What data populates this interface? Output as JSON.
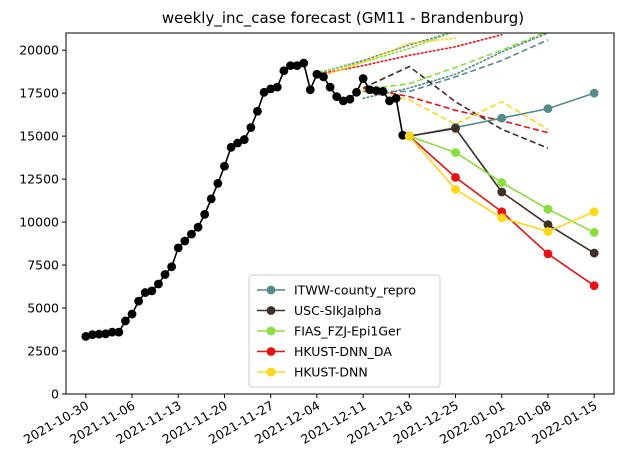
{
  "chart_data": {
    "type": "line",
    "title": "weekly_inc_case forecast (GM11 - Brandenburg)",
    "xlabel": "",
    "ylabel": "",
    "ylim": [
      0,
      21000
    ],
    "yticks": [
      0,
      2500,
      5000,
      7500,
      10000,
      12500,
      15000,
      17500,
      20000
    ],
    "xlim": [
      "2021-10-27",
      "2022-01-18"
    ],
    "xticks": [
      "2021-10-30",
      "2021-11-06",
      "2021-11-13",
      "2021-11-20",
      "2021-11-27",
      "2021-12-04",
      "2021-12-11",
      "2021-12-18",
      "2021-12-25",
      "2022-01-01",
      "2022-01-08",
      "2022-01-15"
    ],
    "grid": false,
    "legend_position": "bottom-center",
    "truth": {
      "color": "#000000",
      "points": [
        [
          "2021-10-30",
          3350
        ],
        [
          "2021-10-31",
          3450
        ],
        [
          "2021-11-01",
          3480
        ],
        [
          "2021-11-02",
          3500
        ],
        [
          "2021-11-03",
          3600
        ],
        [
          "2021-11-04",
          3600
        ],
        [
          "2021-11-05",
          4250
        ],
        [
          "2021-11-06",
          4650
        ],
        [
          "2021-11-07",
          5400
        ],
        [
          "2021-11-08",
          5900
        ],
        [
          "2021-11-09",
          6000
        ],
        [
          "2021-11-10",
          6400
        ],
        [
          "2021-11-11",
          6950
        ],
        [
          "2021-11-12",
          7400
        ],
        [
          "2021-11-13",
          8500
        ],
        [
          "2021-11-14",
          8900
        ],
        [
          "2021-11-15",
          9300
        ],
        [
          "2021-11-16",
          9700
        ],
        [
          "2021-11-17",
          10450
        ],
        [
          "2021-11-18",
          11350
        ],
        [
          "2021-11-19",
          12250
        ],
        [
          "2021-11-20",
          13250
        ],
        [
          "2021-11-21",
          14350
        ],
        [
          "2021-11-22",
          14600
        ],
        [
          "2021-11-23",
          14800
        ],
        [
          "2021-11-24",
          15500
        ],
        [
          "2021-11-25",
          16450
        ],
        [
          "2021-11-26",
          17550
        ],
        [
          "2021-11-27",
          17750
        ],
        [
          "2021-11-28",
          17850
        ],
        [
          "2021-11-29",
          18800
        ],
        [
          "2021-11-30",
          19100
        ],
        [
          "2021-12-01",
          19100
        ],
        [
          "2021-12-02",
          19250
        ],
        [
          "2021-12-03",
          17700
        ],
        [
          "2021-12-04",
          18600
        ],
        [
          "2021-12-05",
          18450
        ],
        [
          "2021-12-06",
          17850
        ],
        [
          "2021-12-07",
          17300
        ],
        [
          "2021-12-08",
          17050
        ],
        [
          "2021-12-09",
          17150
        ],
        [
          "2021-12-10",
          17550
        ],
        [
          "2021-12-11",
          18350
        ],
        [
          "2021-12-12",
          17700
        ],
        [
          "2021-12-13",
          17650
        ],
        [
          "2021-12-14",
          17600
        ],
        [
          "2021-12-15",
          17050
        ],
        [
          "2021-12-16",
          17200
        ],
        [
          "2021-12-17",
          15050
        ]
      ]
    },
    "series": [
      {
        "name": "ITWW-county_repro",
        "color": "#548b8b",
        "points": [
          [
            "2021-12-18",
            15000
          ],
          [
            "2021-12-25",
            15500
          ],
          [
            "2022-01-01",
            16050
          ],
          [
            "2022-01-08",
            16600
          ],
          [
            "2022-01-15",
            17500
          ]
        ]
      },
      {
        "name": "USC-SIkJalpha",
        "color": "#3d3026",
        "points": [
          [
            "2021-12-18",
            15000
          ],
          [
            "2021-12-25",
            15450
          ],
          [
            "2022-01-01",
            11750
          ],
          [
            "2022-01-08",
            9850
          ],
          [
            "2022-01-15",
            8200
          ]
        ]
      },
      {
        "name": "FIAS_FZJ-Epi1Ger",
        "color": "#88e03a",
        "points": [
          [
            "2021-12-18",
            15000
          ],
          [
            "2021-12-25",
            14050
          ],
          [
            "2022-01-01",
            12300
          ],
          [
            "2022-01-08",
            10750
          ],
          [
            "2022-01-15",
            9400
          ]
        ]
      },
      {
        "name": "HKUST-DNN_DA",
        "color": "#ee1010",
        "points": [
          [
            "2021-12-18",
            15000
          ],
          [
            "2021-12-25",
            12600
          ],
          [
            "2022-01-01",
            10600
          ],
          [
            "2022-01-08",
            8150
          ],
          [
            "2022-01-15",
            6300
          ]
        ]
      },
      {
        "name": "HKUST-DNN",
        "color": "#ffd712",
        "points": [
          [
            "2021-12-18",
            15000
          ],
          [
            "2021-12-25",
            11900
          ],
          [
            "2022-01-01",
            10250
          ],
          [
            "2022-01-08",
            9450
          ],
          [
            "2022-01-15",
            10600
          ]
        ]
      }
    ],
    "forecast_traces": [
      {
        "color": "#548b8b",
        "style": "dashed",
        "points": [
          [
            "2021-12-11",
            17600
          ],
          [
            "2021-12-18",
            17600
          ],
          [
            "2021-12-25",
            18450
          ],
          [
            "2022-01-01",
            19400
          ],
          [
            "2022-01-08",
            20600
          ]
        ]
      },
      {
        "color": "#548b8b",
        "style": "dotted",
        "points": [
          [
            "2021-12-11",
            17200
          ],
          [
            "2021-12-18",
            17800
          ],
          [
            "2021-12-25",
            18600
          ],
          [
            "2022-01-01",
            19900
          ],
          [
            "2022-01-08",
            21000
          ]
        ]
      },
      {
        "color": "#548b8b",
        "style": "dotted",
        "points": [
          [
            "2021-12-04",
            18650
          ],
          [
            "2021-12-11",
            19400
          ],
          [
            "2021-12-18",
            20300
          ],
          [
            "2021-12-25",
            21100
          ]
        ]
      },
      {
        "color": "#3d3026",
        "style": "dashed",
        "points": [
          [
            "2021-12-11",
            17800
          ],
          [
            "2021-12-18",
            19050
          ],
          [
            "2021-12-25",
            17000
          ],
          [
            "2022-01-01",
            15400
          ],
          [
            "2022-01-08",
            14300
          ]
        ]
      },
      {
        "color": "#88e03a",
        "style": "dashed",
        "points": [
          [
            "2021-12-11",
            17700
          ],
          [
            "2021-12-18",
            18050
          ],
          [
            "2021-12-25",
            19000
          ],
          [
            "2022-01-01",
            20000
          ],
          [
            "2022-01-08",
            21100
          ]
        ]
      },
      {
        "color": "#88e03a",
        "style": "dotted",
        "points": [
          [
            "2021-12-04",
            18700
          ],
          [
            "2021-12-11",
            19300
          ],
          [
            "2021-12-18",
            20100
          ],
          [
            "2021-12-25",
            21100
          ]
        ]
      },
      {
        "color": "#ee1010",
        "style": "dashed",
        "points": [
          [
            "2021-12-11",
            17800
          ],
          [
            "2021-12-18",
            17300
          ],
          [
            "2021-12-25",
            16500
          ],
          [
            "2022-01-01",
            15900
          ],
          [
            "2022-01-08",
            15200
          ]
        ]
      },
      {
        "color": "#ee1010",
        "style": "dotted",
        "points": [
          [
            "2021-12-04",
            18600
          ],
          [
            "2021-12-11",
            19100
          ],
          [
            "2021-12-18",
            19700
          ],
          [
            "2021-12-25",
            20200
          ],
          [
            "2022-01-01",
            20900
          ]
        ]
      },
      {
        "color": "#ffd712",
        "style": "dashed",
        "points": [
          [
            "2021-12-11",
            17700
          ],
          [
            "2021-12-18",
            17100
          ],
          [
            "2021-12-25",
            15700
          ],
          [
            "2022-01-01",
            17000
          ],
          [
            "2022-01-08",
            15400
          ]
        ]
      },
      {
        "color": "#ffd712",
        "style": "dotted",
        "points": [
          [
            "2021-12-04",
            18400
          ],
          [
            "2021-12-11",
            19300
          ],
          [
            "2021-12-18",
            20400
          ],
          [
            "2021-12-25",
            20700
          ]
        ]
      }
    ]
  }
}
